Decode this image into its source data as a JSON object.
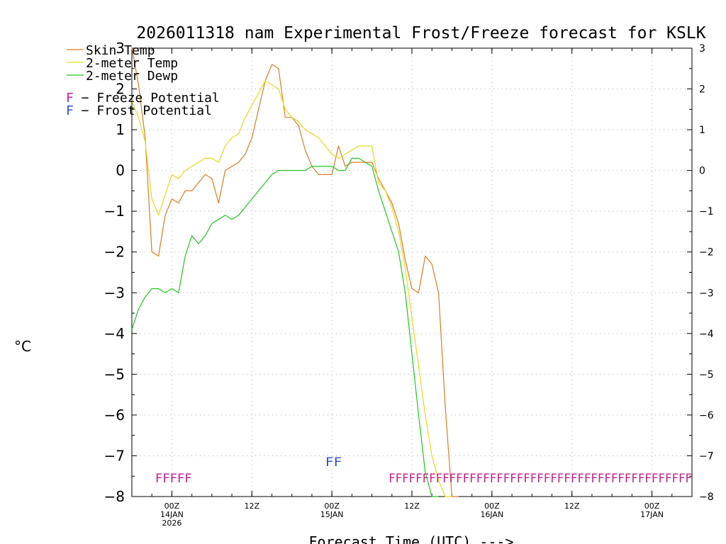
{
  "chart_data": {
    "type": "line",
    "title": "2026011318 nam Experimental Frost/Freeze forecast for KSLK",
    "xlabel": "Forecast Time (UTC) --->",
    "ylabel": "°C",
    "xlim": [
      18,
      102
    ],
    "ylim": [
      -8,
      3
    ],
    "x_unit": "hours since 2026-01-13 00Z",
    "grid": true,
    "yticks": [
      3,
      2,
      1,
      0,
      -1,
      -2,
      -3,
      -4,
      -5,
      -6,
      -7,
      -8
    ],
    "ytick_labels": [
      "3",
      "2",
      "1",
      "0",
      "−1",
      "−2",
      "−3",
      "−4",
      "−5",
      "−6",
      "−7",
      "−8"
    ],
    "xticks": [
      {
        "x": 24,
        "lines": [
          "00Z",
          "14JAN",
          "2026"
        ]
      },
      {
        "x": 36,
        "lines": [
          "12Z"
        ]
      },
      {
        "x": 48,
        "lines": [
          "00Z",
          "15JAN"
        ]
      },
      {
        "x": 60,
        "lines": [
          "12Z"
        ]
      },
      {
        "x": 72,
        "lines": [
          "00Z",
          "16JAN"
        ]
      },
      {
        "x": 84,
        "lines": [
          "12Z"
        ]
      },
      {
        "x": 96,
        "lines": [
          "00Z",
          "17JAN"
        ]
      }
    ],
    "legend": {
      "placement": "top-left",
      "entries": [
        {
          "label": "Skin Temp",
          "color": "#e07b20"
        },
        {
          "label": "2-meter Temp",
          "color": "#e8d81e"
        },
        {
          "label": "2-meter Dewp",
          "color": "#1ec81e"
        }
      ],
      "symbols": [
        {
          "symbol": "F",
          "text": " − Freeze Potential",
          "color": "#c0208a"
        },
        {
          "symbol": "F",
          "text": " − Frost Potential",
          "color": "#3050c8"
        }
      ]
    },
    "series": [
      {
        "name": "Skin Temp",
        "color": "#e07b20",
        "x": [
          18,
          19,
          20,
          21,
          22,
          23,
          24,
          25,
          26,
          27,
          28,
          29,
          30,
          31,
          32,
          33,
          34,
          35,
          36,
          37,
          38,
          39,
          40,
          41,
          42,
          43,
          44,
          45,
          46,
          47,
          48,
          49,
          50,
          51,
          52,
          53,
          54,
          55,
          56,
          57,
          58,
          59,
          60,
          61,
          62,
          63,
          64,
          65,
          66,
          67
        ],
        "y": [
          3.0,
          2.1,
          0.8,
          -2.0,
          -2.1,
          -1.1,
          -0.7,
          -0.8,
          -0.5,
          -0.5,
          -0.3,
          -0.1,
          -0.2,
          -0.8,
          0.0,
          0.1,
          0.2,
          0.4,
          0.8,
          1.5,
          2.2,
          2.6,
          2.5,
          1.3,
          1.3,
          1.1,
          0.5,
          0.1,
          -0.1,
          -0.1,
          -0.1,
          0.6,
          0.1,
          0.2,
          0.2,
          0.2,
          0.2,
          -0.2,
          -0.5,
          -0.8,
          -1.3,
          -2.2,
          -2.9,
          -3.0,
          -2.1,
          -2.3,
          -3.0,
          -5.8,
          -8.0,
          -8.0
        ]
      },
      {
        "name": "2-meter Temp",
        "color": "#e8d81e",
        "x": [
          18,
          19,
          20,
          21,
          22,
          23,
          24,
          25,
          26,
          27,
          28,
          29,
          30,
          31,
          32,
          33,
          34,
          35,
          36,
          37,
          38,
          39,
          40,
          41,
          42,
          43,
          44,
          45,
          46,
          47,
          48,
          49,
          50,
          51,
          52,
          53,
          54,
          55,
          56,
          57,
          58,
          59,
          60,
          61,
          62,
          63,
          64,
          65,
          66
        ],
        "y": [
          1.7,
          1.3,
          0.7,
          -0.7,
          -1.1,
          -0.6,
          -0.1,
          -0.2,
          0.0,
          0.1,
          0.2,
          0.3,
          0.3,
          0.2,
          0.6,
          0.8,
          0.9,
          1.3,
          1.6,
          1.9,
          2.2,
          2.1,
          2.0,
          1.5,
          1.3,
          1.2,
          1.0,
          0.9,
          0.8,
          0.6,
          0.4,
          0.3,
          0.4,
          0.5,
          0.6,
          0.6,
          0.6,
          -0.3,
          -0.5,
          -0.9,
          -1.5,
          -2.4,
          -3.6,
          -4.8,
          -6.0,
          -7.0,
          -7.6,
          -8.0,
          -8.0
        ]
      },
      {
        "name": "2-meter Dewp",
        "color": "#1ec81e",
        "x": [
          18,
          19,
          20,
          21,
          22,
          23,
          24,
          25,
          26,
          27,
          28,
          29,
          30,
          31,
          32,
          33,
          34,
          35,
          36,
          37,
          38,
          39,
          40,
          41,
          42,
          43,
          44,
          45,
          46,
          47,
          48,
          49,
          50,
          51,
          52,
          53,
          54,
          55,
          56,
          57,
          58,
          59,
          60,
          61,
          62,
          63,
          64
        ],
        "y": [
          -3.9,
          -3.4,
          -3.1,
          -2.9,
          -2.9,
          -3.0,
          -2.9,
          -3.0,
          -2.1,
          -1.6,
          -1.8,
          -1.6,
          -1.3,
          -1.2,
          -1.1,
          -1.2,
          -1.1,
          -0.9,
          -0.7,
          -0.5,
          -0.3,
          -0.1,
          0.0,
          0.0,
          0.0,
          0.0,
          0.0,
          0.1,
          0.1,
          0.1,
          0.1,
          0.0,
          0.0,
          0.3,
          0.3,
          0.2,
          0.1,
          -0.5,
          -1.0,
          -1.5,
          -2.0,
          -3.0,
          -4.5,
          -6.0,
          -7.4,
          -8.0,
          -8.0
        ]
      }
    ],
    "markers": [
      {
        "name": "Freeze Potential",
        "symbol": "F",
        "color": "#c0208a",
        "level": -7.5,
        "runs": [
          [
            21.5,
            27
          ]
        ]
      },
      {
        "name": "Frost Potential",
        "symbol": "F",
        "color": "#3050c8",
        "level": -7.1,
        "runs": [
          [
            47,
            49.5
          ]
        ]
      },
      {
        "name": "Freeze Potential",
        "symbol": "F",
        "color": "#c0208a",
        "level": -7.5,
        "runs": [
          [
            56.5,
            102
          ]
        ]
      }
    ]
  }
}
